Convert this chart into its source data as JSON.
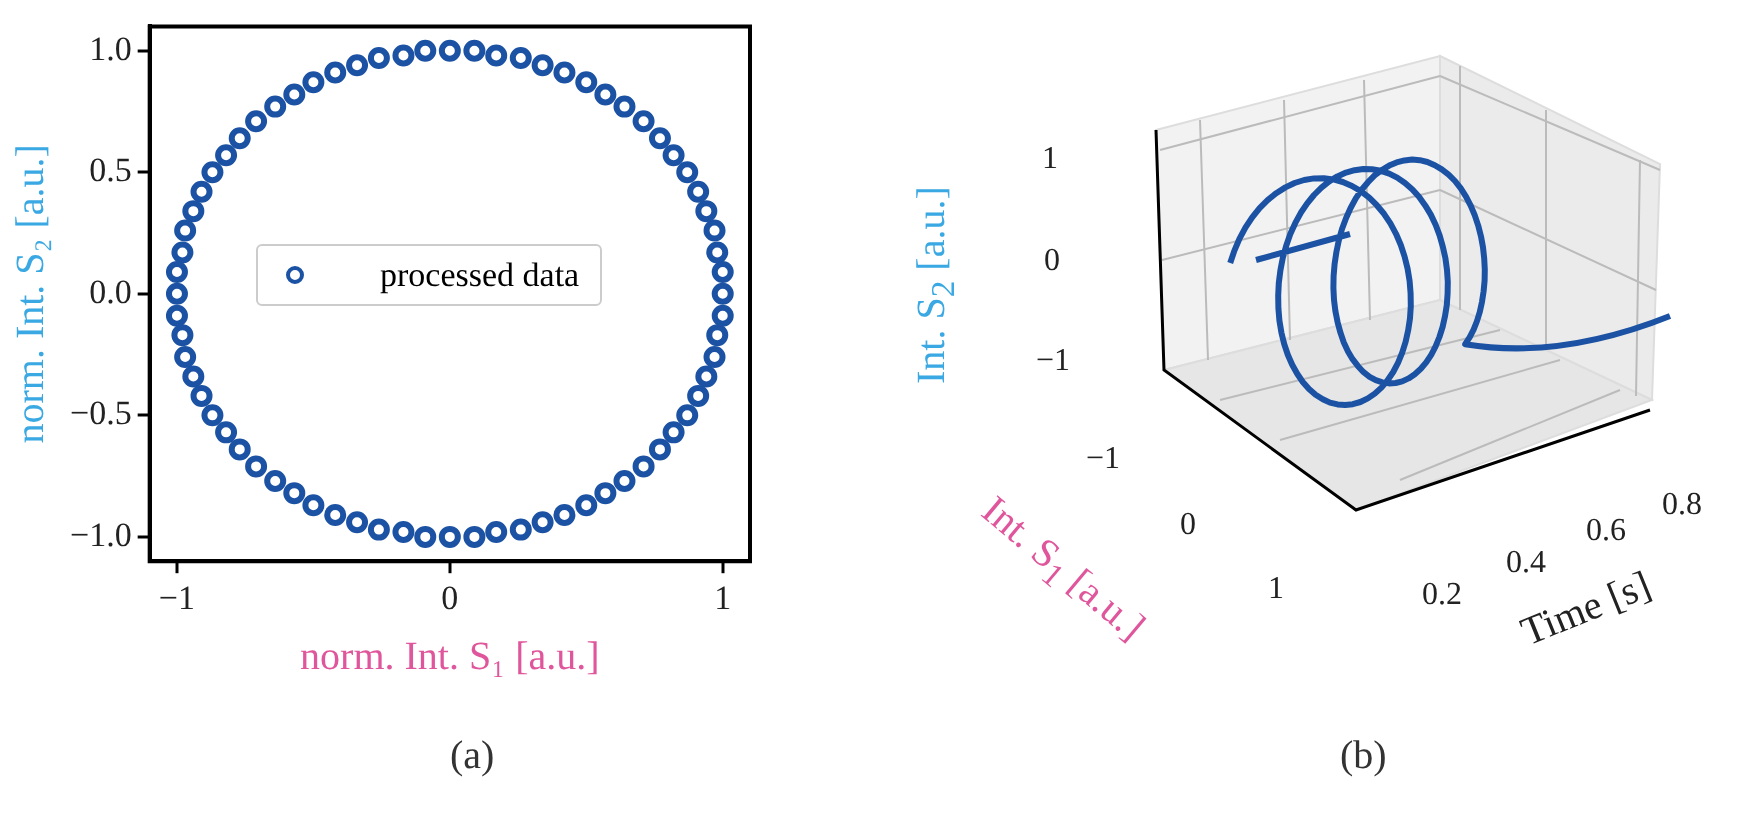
{
  "chart_data": [
    {
      "type": "scatter",
      "xlabel": "norm. Int. S₁ [a.u.]",
      "ylabel": "norm. Int. S₂ [a.u.]",
      "annotations": [
        "(a)"
      ],
      "xlim": [
        -1.1,
        1.1
      ],
      "ylim": [
        -1.1,
        1.1
      ],
      "xticks": [
        {
          "value": -1,
          "label": "−1"
        },
        0,
        1
      ],
      "yticks": [
        {
          "value": -1,
          "label": "−1.0"
        },
        {
          "value": -0.5,
          "label": "−0.5"
        },
        {
          "value": 0,
          "label": "0.0"
        },
        0.5,
        {
          "value": 1,
          "label": "1.0"
        }
      ],
      "legend": "center",
      "marker": "circle",
      "grid": false,
      "series": [
        {
          "name": "processed data",
          "color": "#1c52a3",
          "x": [
            1,
            1,
            0.98,
            0.97,
            0.94,
            0.91,
            0.87,
            0.82,
            0.77,
            0.71,
            0.64,
            0.57,
            0.5,
            0.42,
            0.34,
            0.26,
            0.17,
            0.09,
            0,
            -0.09,
            -0.17,
            -0.26,
            -0.34,
            -0.42,
            -0.5,
            -0.57,
            -0.64,
            -0.71,
            -0.77,
            -0.82,
            -0.87,
            -0.91,
            -0.94,
            -0.97,
            -0.98,
            -1,
            -1,
            -1,
            -0.98,
            -0.97,
            -0.94,
            -0.91,
            -0.87,
            -0.82,
            -0.77,
            -0.71,
            -0.64,
            -0.57,
            -0.5,
            -0.42,
            -0.34,
            -0.26,
            -0.17,
            -0.09,
            0,
            0.09,
            0.17,
            0.26,
            0.34,
            0.42,
            0.5,
            0.57,
            0.64,
            0.71,
            0.77,
            0.82,
            0.87,
            0.91,
            0.94,
            0.97,
            0.98,
            1
          ],
          "values": [
            0,
            0.09,
            0.17,
            0.26,
            0.34,
            0.42,
            0.5,
            0.57,
            0.64,
            0.71,
            0.77,
            0.82,
            0.87,
            0.91,
            0.94,
            0.97,
            0.98,
            1,
            1,
            1,
            0.98,
            0.97,
            0.94,
            0.91,
            0.87,
            0.82,
            0.77,
            0.71,
            0.64,
            0.57,
            0.5,
            0.42,
            0.34,
            0.26,
            0.17,
            0.09,
            0,
            -0.09,
            -0.17,
            -0.26,
            -0.34,
            -0.42,
            -0.5,
            -0.57,
            -0.64,
            -0.71,
            -0.77,
            -0.82,
            -0.87,
            -0.91,
            -0.94,
            -0.97,
            -0.98,
            -1,
            -1,
            -1,
            -0.98,
            -0.97,
            -0.94,
            -0.91,
            -0.87,
            -0.82,
            -0.77,
            -0.71,
            -0.64,
            -0.57,
            -0.5,
            -0.42,
            -0.34,
            -0.26,
            -0.17,
            -0.09
          ]
        }
      ]
    },
    {
      "type": "other",
      "xlabel": "Time [s]",
      "ylabel": "Int. S$_{2}$ [a.u.]",
      "annotations": [
        "Int. S$_{1}$ [a.u.]",
        "1",
        "0",
        "−1",
        "−1",
        "0",
        "1",
        "0.2",
        "0.4",
        "0.6",
        "0.8",
        "(b)"
      ]
    }
  ]
}
